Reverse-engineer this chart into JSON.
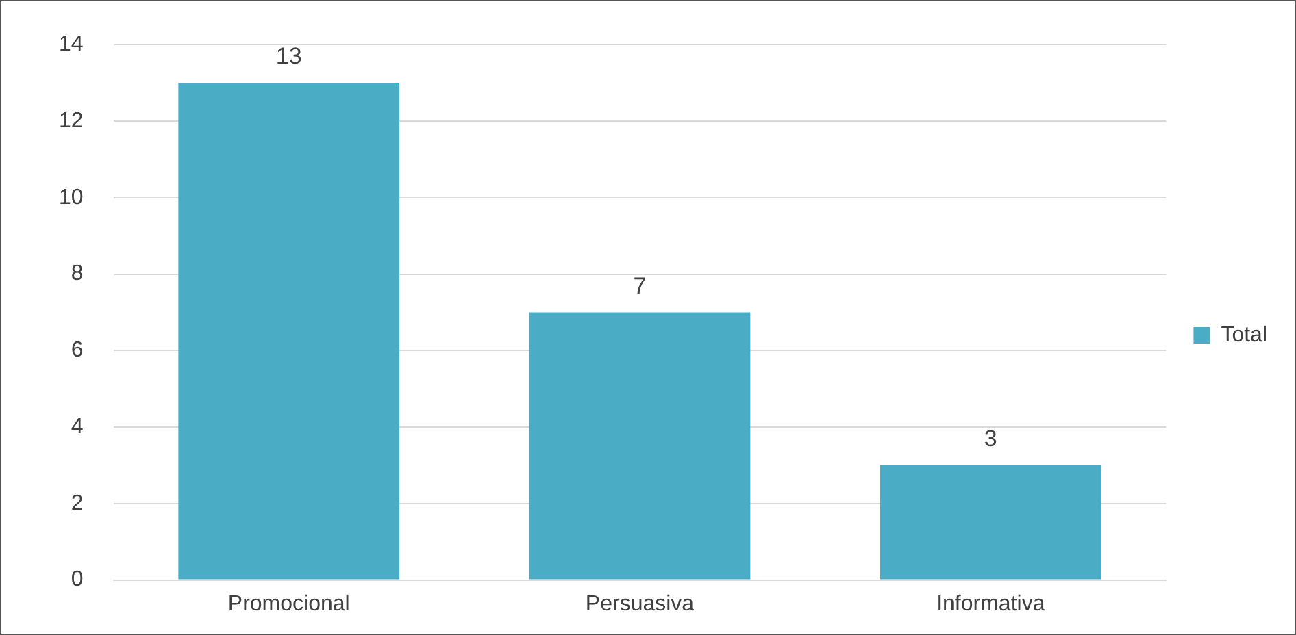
{
  "chart_data": {
    "type": "bar",
    "categories": [
      "Promocional",
      "Persuasiva",
      "Informativa"
    ],
    "series": [
      {
        "name": "Total",
        "color": "#4bacc6",
        "values": [
          13,
          7,
          3
        ]
      }
    ],
    "ylim": [
      0,
      14
    ],
    "yticks": [
      0,
      2,
      4,
      6,
      8,
      10,
      12,
      14
    ],
    "grid": "y",
    "legend": "right",
    "data_labels": true
  }
}
